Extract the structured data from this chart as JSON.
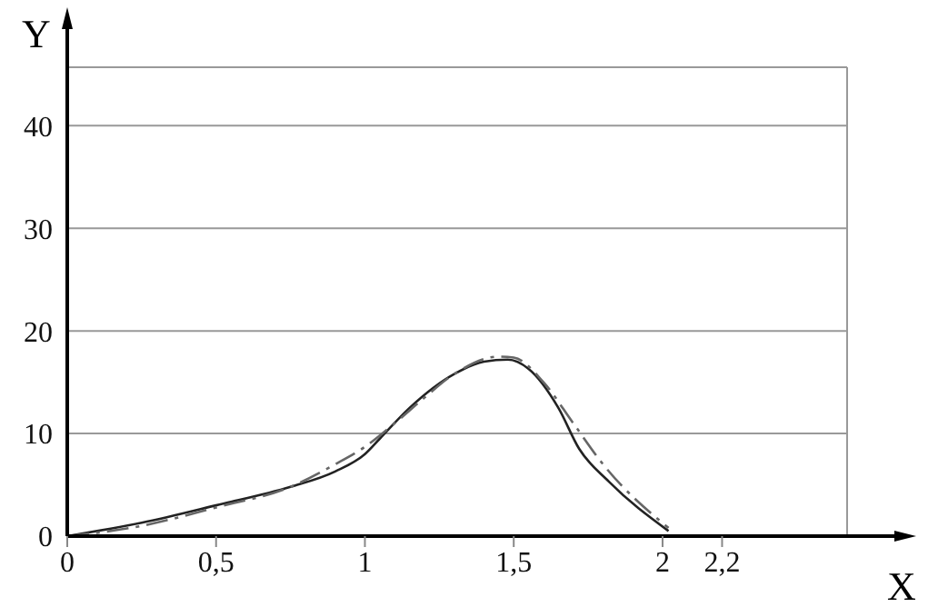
{
  "chart_data": {
    "type": "line",
    "xlabel": "X",
    "ylabel": "Y",
    "xlim": [
      0,
      2.62
    ],
    "ylim": [
      0,
      45.7
    ],
    "xticks": [
      0,
      {
        "value": 0.5,
        "label": "0,5"
      },
      1,
      {
        "value": 1.5,
        "label": "1,5"
      },
      2,
      {
        "value": 2.2,
        "label": "2,2"
      }
    ],
    "yticks": [
      0,
      10,
      20,
      30,
      40,
      {
        "value": 45.7,
        "label": null
      }
    ],
    "grid": "y",
    "marker": "none",
    "series": [
      {
        "color": "#222222",
        "line_style": "solid",
        "x": [
          0,
          0.25,
          0.5,
          0.75,
          0.9,
          1.0,
          1.05,
          1.15,
          1.3,
          1.4,
          1.48,
          1.55,
          1.65,
          1.72,
          1.82,
          2.02
        ],
        "values": [
          0,
          1.3,
          3,
          4.8,
          6.3,
          8,
          9.5,
          12.5,
          15.8,
          17,
          17.2,
          16.3,
          12.5,
          8.5,
          5.3,
          0.5
        ]
      },
      {
        "color": "#666666",
        "line_style": "dashed",
        "x": [
          0,
          0.25,
          0.5,
          0.75,
          0.9,
          1.0,
          1.1,
          1.2,
          1.3,
          1.45,
          1.5,
          1.6,
          1.7,
          1.8,
          2.02
        ],
        "values": [
          0,
          1.0,
          2.8,
          4.8,
          7,
          8.7,
          11,
          13.5,
          15.8,
          17.5,
          17.4,
          15,
          11,
          7,
          0.8
        ]
      }
    ]
  }
}
